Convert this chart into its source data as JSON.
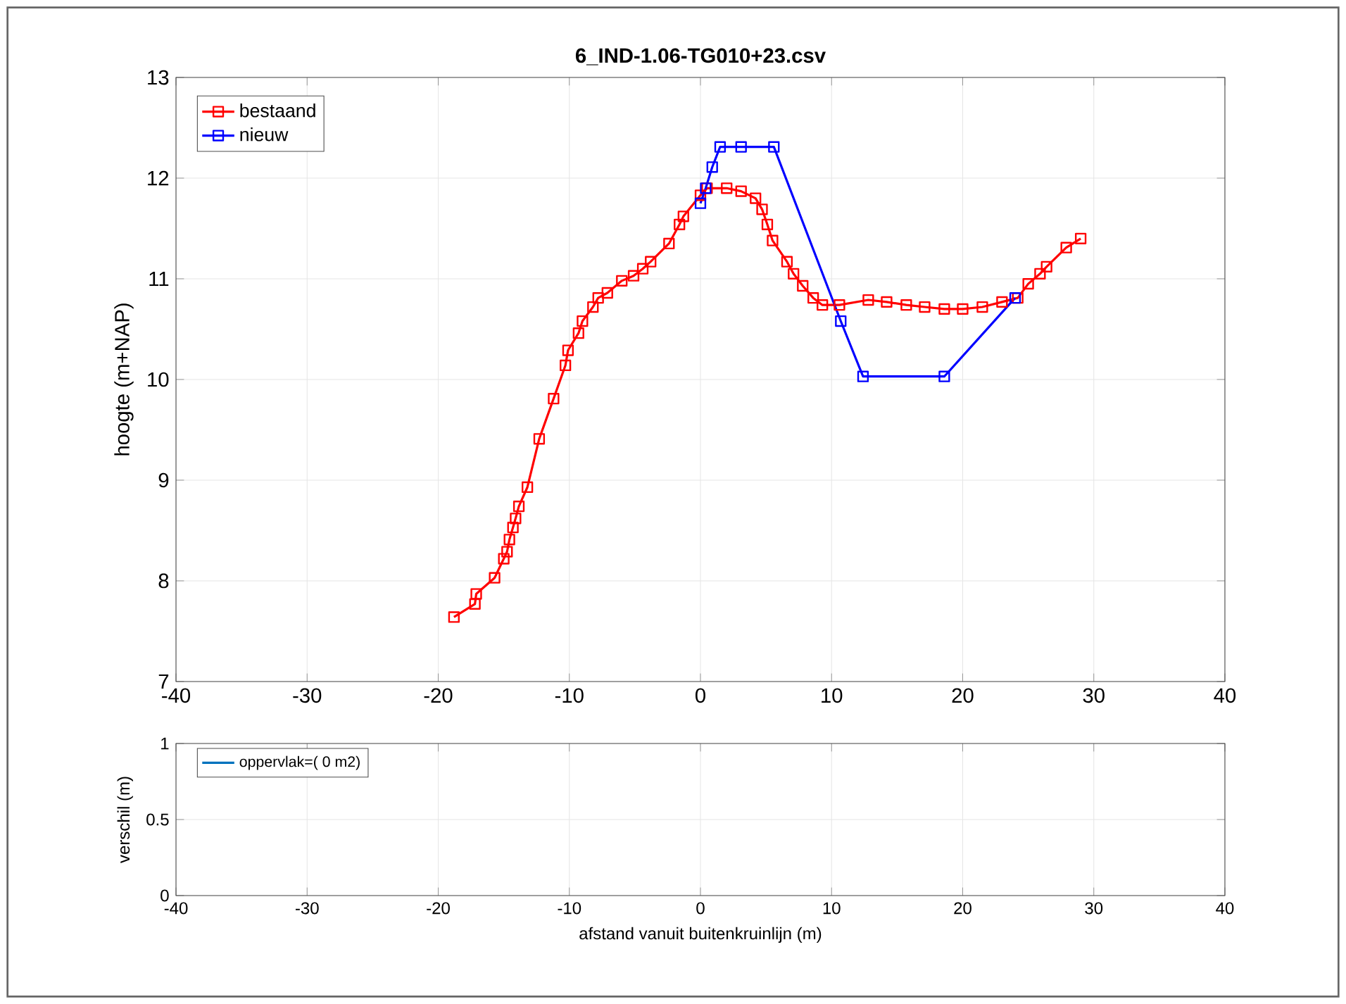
{
  "chart_data": [
    {
      "type": "line",
      "title": "6_IND-1.06-TG010+23.csv",
      "ylabel": "hoogte (m+NAP)",
      "xlim": [
        -40,
        40
      ],
      "xticks": [
        -40,
        -30,
        -20,
        -10,
        0,
        10,
        20,
        30,
        40
      ],
      "ylim": [
        7,
        13
      ],
      "yticks": [
        7,
        8,
        9,
        10,
        11,
        12,
        13
      ],
      "grid": true,
      "legend": "top left",
      "marker": "square",
      "line_style": "solid",
      "series": [
        {
          "name": "bestaand",
          "color": "#ff0000",
          "x": [
            -18.8,
            -17.2,
            -17.1,
            -15.7,
            -15.0,
            -14.75,
            -14.57,
            -14.3,
            -14.1,
            -13.85,
            -13.2,
            -12.3,
            -11.2,
            -10.3,
            -10.1,
            -9.3,
            -9.0,
            -8.2,
            -7.8,
            -7.1,
            -6.0,
            -5.1,
            -4.4,
            -3.8,
            -2.4,
            -1.6,
            -1.3,
            0,
            0.5,
            2.0,
            3.1,
            4.2,
            4.7,
            5.1,
            5.5,
            6.6,
            7.1,
            7.8,
            8.6,
            9.3,
            10.6,
            12.8,
            14.2,
            15.7,
            17.1,
            18.6,
            20.0,
            21.5,
            23.0,
            24.2,
            25.0,
            25.9,
            26.4,
            27.9,
            29.0
          ],
          "values": [
            7.64,
            7.77,
            7.87,
            8.03,
            8.22,
            8.29,
            8.41,
            8.53,
            8.62,
            8.74,
            8.93,
            9.41,
            9.81,
            10.14,
            10.29,
            10.46,
            10.58,
            10.72,
            10.81,
            10.86,
            10.98,
            11.03,
            11.1,
            11.17,
            11.35,
            11.54,
            11.62,
            11.83,
            11.9,
            11.9,
            11.87,
            11.8,
            11.69,
            11.54,
            11.38,
            11.17,
            11.05,
            10.93,
            10.81,
            10.74,
            10.74,
            10.79,
            10.77,
            10.74,
            10.72,
            10.7,
            10.7,
            10.72,
            10.77,
            10.81,
            10.95,
            11.05,
            11.12,
            11.31,
            11.4
          ]
        },
        {
          "name": "nieuw",
          "color": "#0000ff",
          "x": [
            0,
            0.4,
            0.9,
            1.5,
            3.1,
            5.6,
            10.7,
            12.4,
            18.6,
            24.0
          ],
          "values": [
            11.75,
            11.9,
            12.11,
            12.31,
            12.31,
            12.31,
            10.58,
            10.03,
            10.03,
            10.81
          ]
        }
      ]
    },
    {
      "type": "line",
      "xlabel": "afstand vanuit buitenkruinlijn (m)",
      "ylabel": "verschil (m)",
      "xlim": [
        -40,
        40
      ],
      "xticks": [
        -40,
        -30,
        -20,
        -10,
        0,
        10,
        20,
        30,
        40
      ],
      "ylim": [
        0,
        1
      ],
      "yticks": [
        0,
        0.5,
        1
      ],
      "grid": true,
      "legend": "top left",
      "series": [
        {
          "name": "oppervlak=( 0 m2)",
          "color": "#0072bd",
          "x": [
            null
          ],
          "values": [
            null
          ]
        }
      ]
    }
  ]
}
